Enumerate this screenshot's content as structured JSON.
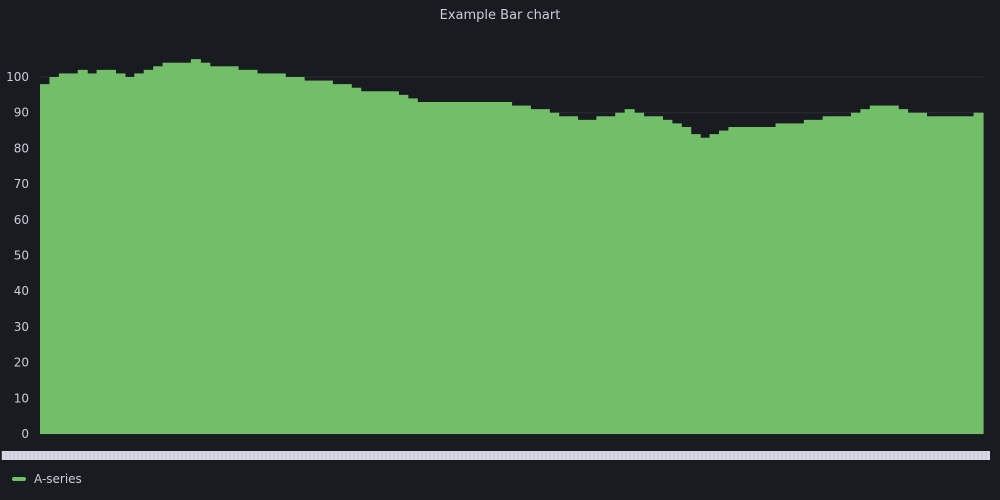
{
  "panel": {
    "title": "Example Bar chart"
  },
  "legend": {
    "series_name": "A-series"
  },
  "colors": {
    "series": "#73bf69",
    "background": "#181b1f",
    "grid": "#2a2d34",
    "tick_text": "#ccccdc",
    "xaxis_band": "#d8d8e6"
  },
  "chart_data": {
    "type": "bar",
    "title": "Example Bar chart",
    "xlabel": "",
    "ylabel": "",
    "ylim": [
      0,
      100
    ],
    "y_ticks": [
      0,
      10,
      20,
      30,
      40,
      50,
      60,
      70,
      80,
      90,
      100
    ],
    "grid": true,
    "legend_position": "bottom-left",
    "x_tick_labels": "dense and overlapping, unreadable",
    "series": [
      {
        "name": "A-series",
        "color": "#73bf69",
        "values": [
          98,
          100,
          101,
          101,
          102,
          101,
          102,
          102,
          101,
          100,
          101,
          102,
          103,
          104,
          104,
          104,
          105,
          104,
          103,
          103,
          103,
          102,
          102,
          101,
          101,
          101,
          100,
          100,
          99,
          99,
          99,
          98,
          98,
          97,
          96,
          96,
          96,
          96,
          95,
          94,
          93,
          93,
          93,
          93,
          93,
          93,
          93,
          93,
          93,
          93,
          92,
          92,
          91,
          91,
          90,
          89,
          89,
          88,
          88,
          89,
          89,
          90,
          91,
          90,
          89,
          89,
          88,
          87,
          86,
          84,
          83,
          84,
          85,
          86,
          86,
          86,
          86,
          86,
          87,
          87,
          87,
          88,
          88,
          89,
          89,
          89,
          90,
          91,
          92,
          92,
          92,
          91,
          90,
          90,
          89,
          89,
          89,
          89,
          89,
          90
        ]
      }
    ]
  }
}
